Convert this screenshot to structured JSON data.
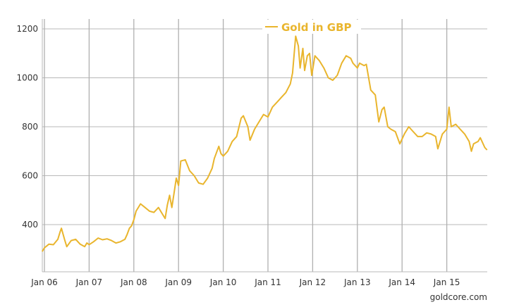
{
  "chart_data": {
    "type": "line",
    "title": "",
    "xlabel": "",
    "ylabel": "",
    "ylim": [
      207,
      1240
    ],
    "xlim": [
      2005.95,
      2015.92
    ],
    "grid": true,
    "legend_placement": "top-center",
    "y_ticks": [
      400,
      600,
      800,
      1000,
      1200
    ],
    "y_tick_labels": [
      "400",
      "600",
      "800",
      "1000",
      "1200"
    ],
    "x_ticks": [
      2006,
      2007,
      2008,
      2009,
      2010,
      2011,
      2012,
      2013,
      2014,
      2015
    ],
    "x_tick_labels": [
      "Jan 06",
      "Jan 07",
      "Jan 08",
      "Jan 09",
      "Jan 10",
      "Jan 11",
      "Jan 12",
      "Jan 13",
      "Jan 14",
      "Jan 15"
    ],
    "series": [
      {
        "name": "Gold in GBP",
        "color": "#e9b52d",
        "x": [
          2005.95,
          2006.0,
          2006.1,
          2006.2,
          2006.3,
          2006.35,
          2006.38,
          2006.45,
          2006.5,
          2006.6,
          2006.7,
          2006.8,
          2006.9,
          2006.95,
          2007.0,
          2007.1,
          2007.2,
          2007.3,
          2007.4,
          2007.5,
          2007.6,
          2007.7,
          2007.8,
          2007.85,
          2007.9,
          2007.95,
          2008.0,
          2008.05,
          2008.15,
          2008.25,
          2008.35,
          2008.45,
          2008.55,
          2008.65,
          2008.7,
          2008.75,
          2008.8,
          2008.85,
          2008.9,
          2008.95,
          2009.0,
          2009.05,
          2009.15,
          2009.25,
          2009.35,
          2009.45,
          2009.55,
          2009.65,
          2009.75,
          2009.8,
          2009.9,
          2009.95,
          2010.0,
          2010.1,
          2010.2,
          2010.3,
          2010.4,
          2010.45,
          2010.55,
          2010.6,
          2010.7,
          2010.8,
          2010.9,
          2011.0,
          2011.1,
          2011.2,
          2011.3,
          2011.4,
          2011.5,
          2011.55,
          2011.62,
          2011.68,
          2011.72,
          2011.78,
          2011.82,
          2011.88,
          2011.93,
          2011.98,
          2012.05,
          2012.15,
          2012.25,
          2012.35,
          2012.45,
          2012.55,
          2012.65,
          2012.75,
          2012.85,
          2012.9,
          2013.0,
          2013.05,
          2013.15,
          2013.2,
          2013.3,
          2013.4,
          2013.48,
          2013.55,
          2013.6,
          2013.68,
          2013.75,
          2013.85,
          2013.95,
          2014.05,
          2014.15,
          2014.25,
          2014.35,
          2014.45,
          2014.55,
          2014.65,
          2014.75,
          2014.8,
          2014.9,
          2015.0,
          2015.05,
          2015.1,
          2015.2,
          2015.3,
          2015.4,
          2015.5,
          2015.55,
          2015.6,
          2015.7,
          2015.75,
          2015.85,
          2015.9
        ],
        "values": [
          290,
          305,
          320,
          318,
          340,
          370,
          385,
          340,
          310,
          335,
          340,
          320,
          310,
          325,
          318,
          330,
          345,
          338,
          342,
          335,
          325,
          330,
          340,
          360,
          385,
          395,
          420,
          455,
          485,
          470,
          455,
          450,
          470,
          440,
          425,
          480,
          520,
          470,
          530,
          590,
          560,
          660,
          665,
          620,
          600,
          570,
          565,
          590,
          630,
          670,
          720,
          690,
          680,
          700,
          740,
          760,
          835,
          845,
          800,
          745,
          790,
          820,
          850,
          840,
          880,
          900,
          920,
          940,
          975,
          1020,
          1170,
          1130,
          1040,
          1120,
          1030,
          1090,
          1100,
          1010,
          1090,
          1070,
          1040,
          1000,
          990,
          1010,
          1060,
          1090,
          1080,
          1060,
          1040,
          1060,
          1050,
          1055,
          950,
          930,
          820,
          870,
          880,
          800,
          790,
          780,
          730,
          770,
          800,
          780,
          760,
          760,
          775,
          770,
          760,
          710,
          770,
          790,
          880,
          800,
          810,
          790,
          770,
          740,
          700,
          730,
          740,
          755,
          715,
          705
        ]
      }
    ]
  },
  "footer": {
    "credit": "goldcore.com"
  }
}
